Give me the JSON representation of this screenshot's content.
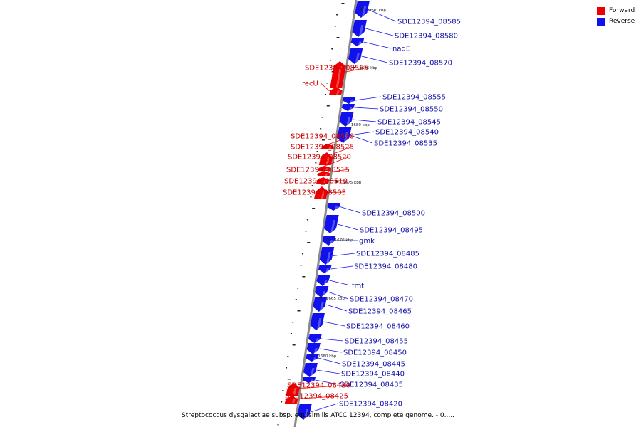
{
  "legend": {
    "forward": {
      "label": "Forward",
      "color": "#ee0000"
    },
    "reverse": {
      "label": "Reverse",
      "color": "#1111ee"
    }
  },
  "caption": "Streptococcus dysgalactiae subsp. equisimilis ATCC 12394, complete genome. - 0.....",
  "colors": {
    "forward_label": "#cc0000",
    "reverse_label": "#1111aa",
    "axis": "#888888"
  },
  "scale_labels": [
    "1690 kbp",
    "1685 kbp",
    "1680 kbp",
    "1675 kbp",
    "1670 kbp",
    "1665 kbp",
    "1660 kbp"
  ],
  "genes": [
    {
      "name": "SDE12394_08585",
      "strand": "reverse"
    },
    {
      "name": "SDE12394_08580",
      "strand": "reverse"
    },
    {
      "name": "nadE",
      "strand": "reverse"
    },
    {
      "name": "SDE12394_08570",
      "strand": "reverse"
    },
    {
      "name": "SDE12394_08565",
      "strand": "forward"
    },
    {
      "name": "recU",
      "strand": "forward"
    },
    {
      "name": "SDE12394_08555",
      "strand": "reverse"
    },
    {
      "name": "SDE12394_08550",
      "strand": "reverse"
    },
    {
      "name": "SDE12394_08545",
      "strand": "reverse"
    },
    {
      "name": "SDE12394_08540",
      "strand": "reverse"
    },
    {
      "name": "SDE12394_08535",
      "strand": "reverse"
    },
    {
      "name": "SDE12394_08530",
      "strand": "forward"
    },
    {
      "name": "SDE12394_08525",
      "strand": "forward"
    },
    {
      "name": "SDE12394_08520",
      "strand": "forward"
    },
    {
      "name": "SDE12394_08515",
      "strand": "forward"
    },
    {
      "name": "SDE12394_08510",
      "strand": "forward"
    },
    {
      "name": "SDE12394_08505",
      "strand": "forward"
    },
    {
      "name": "SDE12394_08500",
      "strand": "reverse"
    },
    {
      "name": "SDE12394_08495",
      "strand": "reverse"
    },
    {
      "name": "gmk",
      "strand": "reverse"
    },
    {
      "name": "SDE12394_08485",
      "strand": "reverse"
    },
    {
      "name": "SDE12394_08480",
      "strand": "reverse"
    },
    {
      "name": "fmt",
      "strand": "reverse"
    },
    {
      "name": "SDE12394_08470",
      "strand": "reverse"
    },
    {
      "name": "SDE12394_08465",
      "strand": "reverse"
    },
    {
      "name": "SDE12394_08460",
      "strand": "reverse"
    },
    {
      "name": "SDE12394_08455",
      "strand": "reverse"
    },
    {
      "name": "SDE12394_08450",
      "strand": "reverse"
    },
    {
      "name": "SDE12394_08445",
      "strand": "reverse"
    },
    {
      "name": "SDE12394_08440",
      "strand": "reverse"
    },
    {
      "name": "SDE12394_08435",
      "strand": "reverse"
    },
    {
      "name": "SDE12394_08430",
      "strand": "forward"
    },
    {
      "name": "SDE12394_08425",
      "strand": "forward"
    },
    {
      "name": "SDE12394_08420",
      "strand": "reverse"
    }
  ]
}
